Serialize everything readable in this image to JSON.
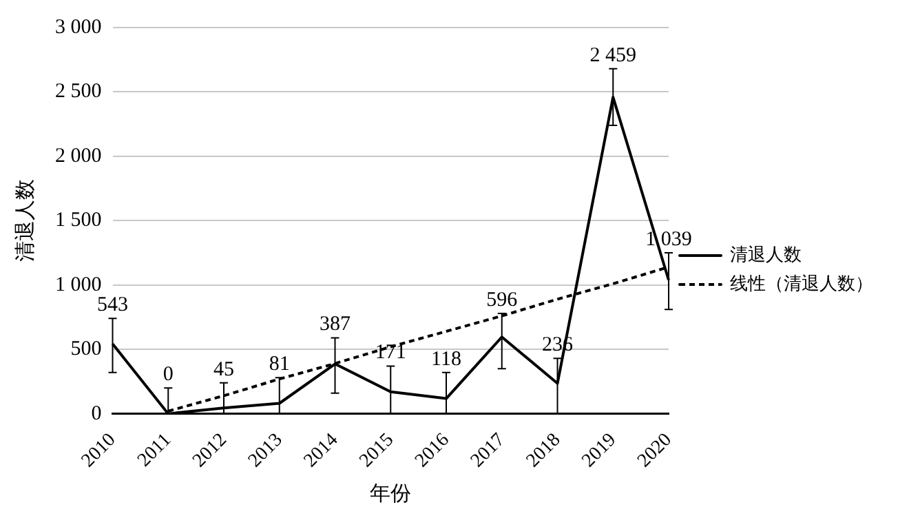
{
  "chart_data": {
    "type": "line",
    "xlabel": "年份",
    "ylabel": "清退人数",
    "categories": [
      "2010",
      "2011",
      "2012",
      "2013",
      "2014",
      "2015",
      "2016",
      "2017",
      "2018",
      "2019",
      "2020"
    ],
    "series": [
      {
        "name": "清退人数",
        "color": "#000000",
        "values": [
          543,
          0,
          45,
          81,
          387,
          171,
          118,
          596,
          236,
          2459,
          1039
        ],
        "line_style": "solid",
        "errors": [
          [
            320,
            740
          ],
          [
            0,
            200
          ],
          [
            0,
            240
          ],
          [
            0,
            280
          ],
          [
            160,
            590
          ],
          [
            0,
            370
          ],
          [
            0,
            320
          ],
          [
            350,
            780
          ],
          [
            0,
            430
          ],
          [
            2240,
            2680
          ],
          [
            810,
            1250
          ]
        ],
        "value_labels": [
          "543",
          "0",
          "45",
          "81",
          "387",
          "171",
          "118",
          "596",
          "236",
          "2 459",
          "1 039"
        ]
      },
      {
        "name": "线性（清退人数）",
        "type": "line",
        "color": "#000000",
        "line_style": "dashed",
        "values": [
          null,
          20,
          140,
          270,
          390,
          520,
          640,
          760,
          890,
          1010,
          1140
        ]
      }
    ],
    "ylim": [
      0,
      3000
    ],
    "yticks": [
      {
        "value": 0,
        "label": "0"
      },
      {
        "value": 500,
        "label": "500"
      },
      {
        "value": 1000,
        "label": "1 000"
      },
      {
        "value": 1500,
        "label": "1 500"
      },
      {
        "value": 2000,
        "label": "2 000"
      },
      {
        "value": 2500,
        "label": "2 500"
      },
      {
        "value": 3000,
        "label": "3 000"
      }
    ],
    "grid": "y",
    "legend": "right",
    "marker": "none"
  }
}
